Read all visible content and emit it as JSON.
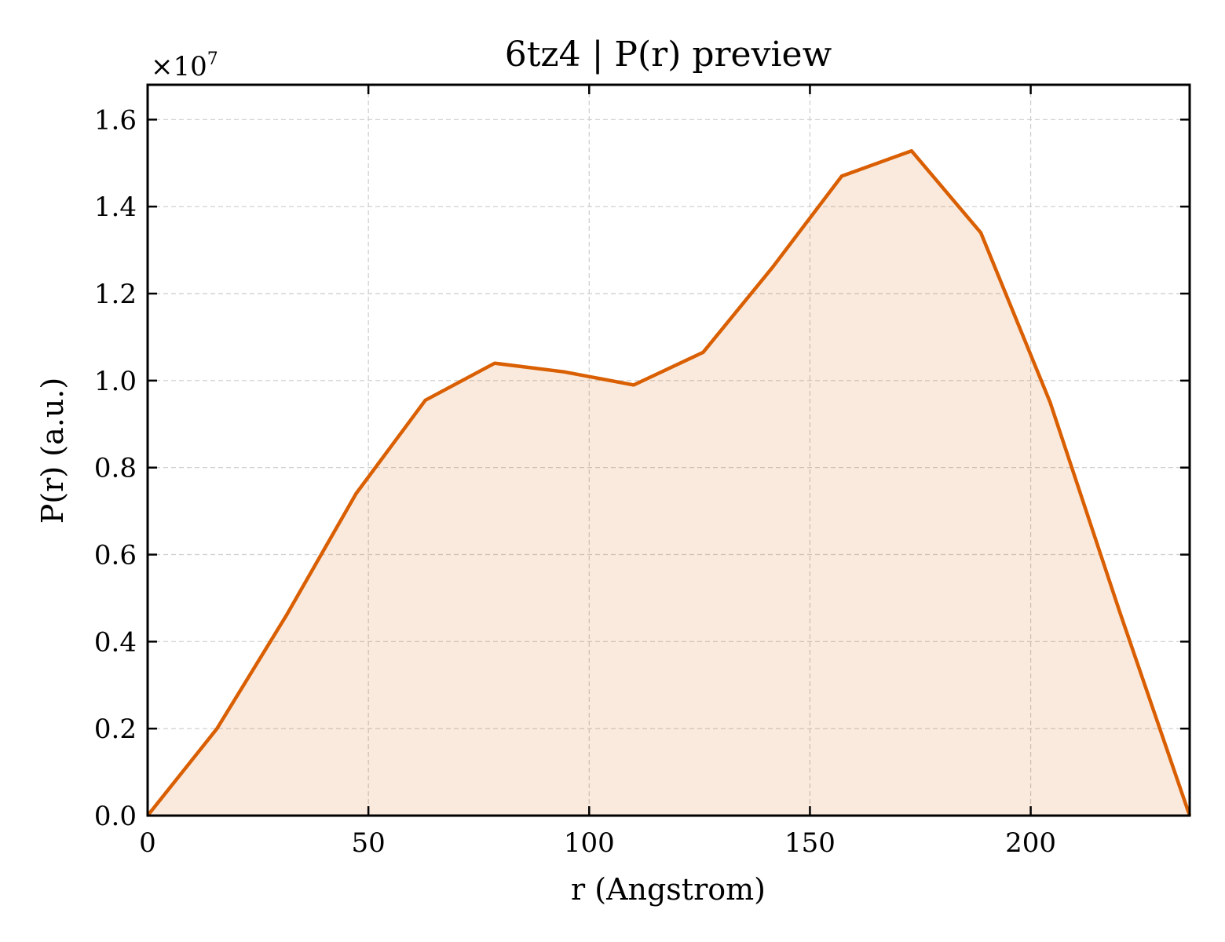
{
  "chart_data": {
    "type": "area",
    "title": "6tz4 | P(r) preview",
    "xlabel": "r (Angstrom)",
    "ylabel": "P(r) (a.u.)",
    "y_multiplier_label": "×10",
    "y_multiplier_exponent": "7",
    "xlim": [
      0,
      236
    ],
    "ylim": [
      0,
      1.68
    ],
    "xticks": [
      0,
      50,
      100,
      150,
      200
    ],
    "xtick_labels": [
      "0",
      "50",
      "100",
      "150",
      "200"
    ],
    "yticks": [
      0,
      0.2,
      0.4,
      0.6,
      0.8,
      1.0,
      1.2,
      1.4,
      1.6
    ],
    "ytick_labels": [
      "0.0",
      "0.2",
      "0.4",
      "0.6",
      "0.8",
      "1.0",
      "1.2",
      "1.4",
      "1.6"
    ],
    "grid": true,
    "series": [
      {
        "color": "#d95f02",
        "fill_color": "#d95f02",
        "x": [
          0,
          15.7,
          31.4,
          47.2,
          62.9,
          78.6,
          94.3,
          110.1,
          125.8,
          141.5,
          157.2,
          173.0,
          188.7,
          204.4,
          220.1,
          236.0
        ],
        "y": [
          0.0,
          0.2,
          0.46,
          0.74,
          0.955,
          1.04,
          1.02,
          0.99,
          1.065,
          1.26,
          1.47,
          1.528,
          1.34,
          0.95,
          0.47,
          0.0
        ]
      }
    ]
  }
}
